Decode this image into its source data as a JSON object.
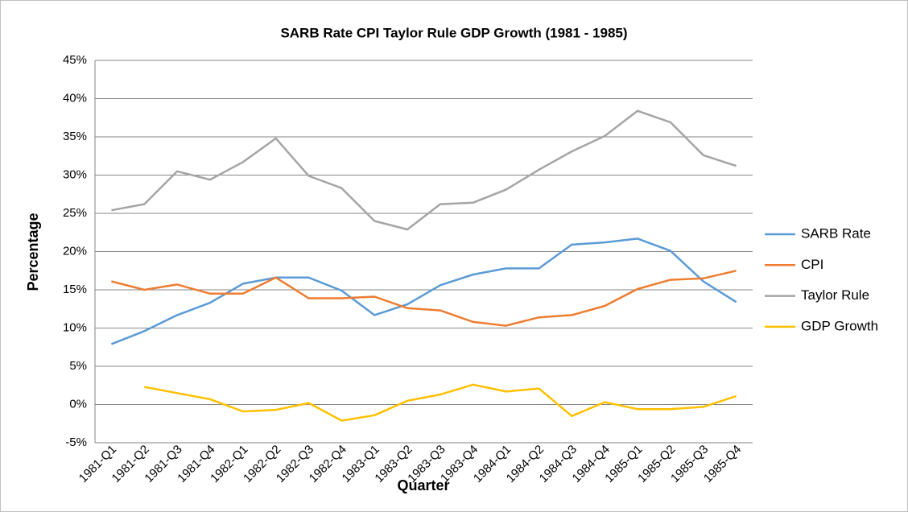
{
  "chart_data": {
    "type": "line",
    "title": "SARB Rate CPI Taylor Rule GDP Growth (1981 - 1985)",
    "x_label": "Quarter",
    "y_label": "Percentage",
    "categories": [
      "1981-Q1",
      "1981-Q2",
      "1981-Q3",
      "1981-Q4",
      "1982-Q1",
      "1982-Q2",
      "1982-Q3",
      "1982-Q4",
      "1983-Q1",
      "1983-Q2",
      "1983-Q3",
      "1983-Q4",
      "1984-Q1",
      "1984-Q2",
      "1984-Q3",
      "1984-Q4",
      "1985-Q1",
      "1985-Q2",
      "1985-Q3",
      "1985-Q4"
    ],
    "series": [
      {
        "name": "SARB Rate",
        "color": "#5b9bd5",
        "values": [
          7.9,
          9.6,
          11.7,
          13.3,
          15.8,
          16.6,
          16.6,
          14.9,
          11.7,
          13.1,
          15.6,
          17.0,
          17.8,
          17.8,
          20.9,
          21.2,
          21.7,
          20.1,
          16.1,
          13.4
        ]
      },
      {
        "name": "CPI",
        "color": "#ed7d31",
        "values": [
          16.1,
          15.0,
          15.7,
          14.5,
          14.5,
          16.6,
          13.9,
          13.9,
          14.1,
          12.6,
          12.3,
          10.8,
          10.3,
          11.4,
          11.7,
          12.9,
          15.1,
          16.3,
          16.5,
          17.5
        ]
      },
      {
        "name": "Taylor Rule",
        "color": "#a5a5a5",
        "values": [
          25.4,
          26.2,
          30.5,
          29.4,
          31.7,
          34.8,
          29.9,
          28.3,
          24.0,
          22.9,
          26.2,
          26.4,
          28.1,
          30.7,
          33.1,
          35.1,
          38.4,
          36.9,
          32.6,
          31.2
        ]
      },
      {
        "name": "GDP Growth",
        "color": "#ffc000",
        "values": [
          null,
          2.3,
          1.5,
          0.7,
          -0.9,
          -0.7,
          0.2,
          -2.1,
          -1.4,
          0.5,
          1.3,
          2.6,
          1.7,
          2.1,
          -1.5,
          0.3,
          -0.6,
          -0.6,
          -0.3,
          1.1
        ]
      }
    ],
    "ylim": [
      -5,
      45
    ],
    "yticks": [
      {
        "value": -5,
        "label": "-5%"
      },
      {
        "value": 0,
        "label": "0%"
      },
      {
        "value": 5,
        "label": "5%"
      },
      {
        "value": 10,
        "label": "10%"
      },
      {
        "value": 15,
        "label": "15%"
      },
      {
        "value": 20,
        "label": "20%"
      },
      {
        "value": 25,
        "label": "25%"
      },
      {
        "value": 30,
        "label": "30%"
      },
      {
        "value": 35,
        "label": "35%"
      },
      {
        "value": 40,
        "label": "40%"
      },
      {
        "value": 45,
        "label": "45%"
      }
    ],
    "grid": true,
    "legend": "right"
  }
}
